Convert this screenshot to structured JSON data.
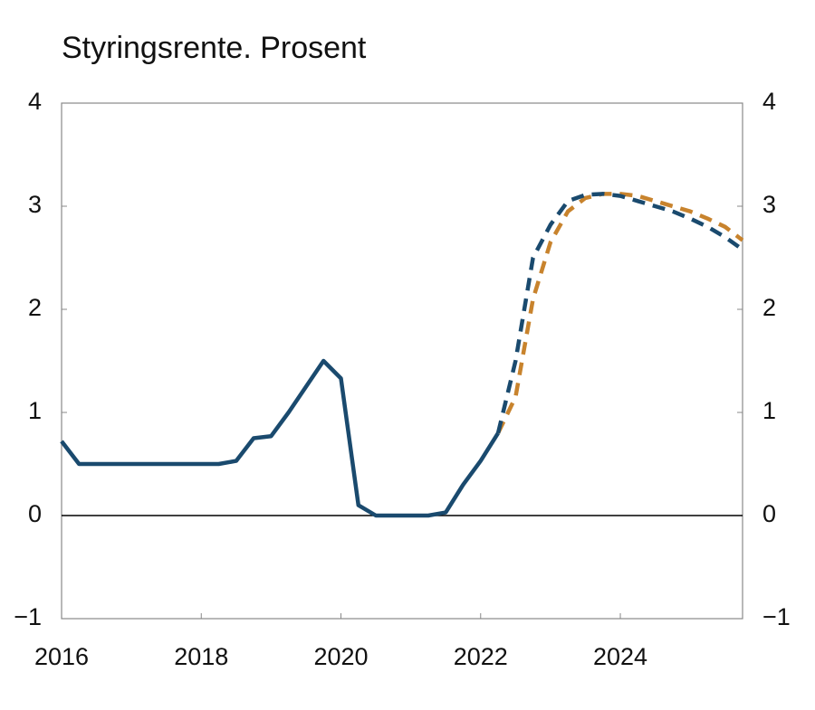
{
  "chart_data": {
    "type": "line",
    "title": "Styringsrente. Prosent",
    "x": [
      2016,
      2016.25,
      2016.5,
      2016.75,
      2017,
      2017.25,
      2017.5,
      2017.75,
      2018,
      2018.25,
      2018.5,
      2018.75,
      2019,
      2019.25,
      2019.5,
      2019.75,
      2020,
      2020.25,
      2020.5,
      2020.75,
      2021,
      2021.25,
      2021.5,
      2021.75,
      2022,
      2022.25,
      2022.5,
      2022.75,
      2023,
      2023.25,
      2023.5,
      2023.75,
      2024,
      2024.25,
      2024.5,
      2024.75,
      2025,
      2025.25,
      2025.5,
      2025.75
    ],
    "series": [
      {
        "color": "#c8832d",
        "dashed": true,
        "values": [
          null,
          null,
          null,
          null,
          null,
          null,
          null,
          null,
          null,
          null,
          null,
          null,
          null,
          null,
          null,
          null,
          null,
          null,
          null,
          null,
          null,
          null,
          null,
          null,
          null,
          0.8,
          1.15,
          2.1,
          2.65,
          2.95,
          3.08,
          3.12,
          3.12,
          3.1,
          3.05,
          3.0,
          2.95,
          2.88,
          2.8,
          2.67
        ]
      },
      {
        "color": "#1a4a6e",
        "dashed": true,
        "values": [
          null,
          null,
          null,
          null,
          null,
          null,
          null,
          null,
          null,
          null,
          null,
          null,
          null,
          null,
          null,
          null,
          null,
          null,
          null,
          null,
          null,
          null,
          null,
          null,
          null,
          0.8,
          1.5,
          2.5,
          2.82,
          3.05,
          3.11,
          3.12,
          3.1,
          3.05,
          3.0,
          2.95,
          2.88,
          2.8,
          2.7,
          2.58
        ]
      },
      {
        "color": "#1a4a6e",
        "dashed": false,
        "values": [
          0.72,
          0.5,
          0.5,
          0.5,
          0.5,
          0.5,
          0.5,
          0.5,
          0.5,
          0.5,
          0.53,
          0.75,
          0.77,
          1.0,
          1.25,
          1.5,
          1.33,
          0.1,
          0.0,
          0,
          0,
          0,
          0.03,
          0.3,
          0.53,
          0.8,
          null,
          null,
          null,
          null,
          null,
          null,
          null,
          null,
          null,
          null,
          null,
          null,
          null,
          null
        ]
      }
    ],
    "xlim": [
      2016,
      2025.75
    ],
    "xticks": [
      2016,
      2018,
      2020,
      2022,
      2024
    ],
    "ylim": [
      -1,
      4
    ],
    "yticks": [
      {
        "value": -1,
        "label": "−1"
      },
      0,
      1,
      2,
      3,
      4
    ],
    "y2lim": [
      -1,
      4
    ],
    "y2ticks": [
      {
        "value": -1,
        "label": "−1"
      },
      0,
      1,
      2,
      3,
      4
    ],
    "zero_line": true,
    "grid": false
  }
}
